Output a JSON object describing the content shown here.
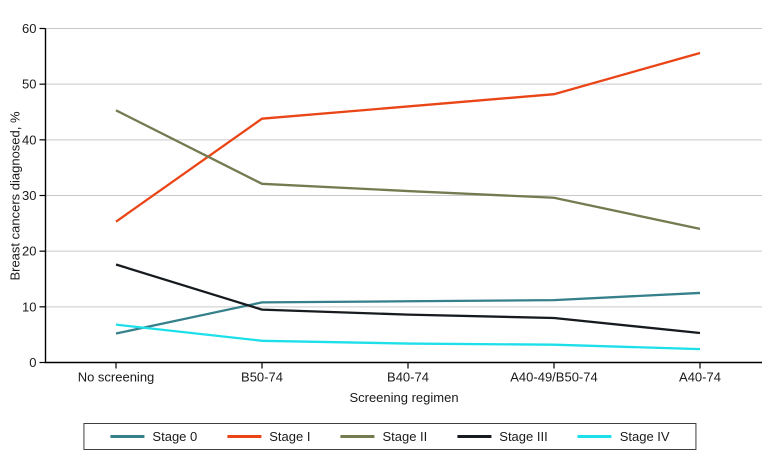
{
  "chart_data": {
    "type": "line",
    "title": "",
    "xlabel": "Screening regimen",
    "ylabel": "Breast cancers diagnosed, %",
    "categories": [
      "No screening",
      "B50-74",
      "B40-74",
      "A40-49/B50-74",
      "A40-74"
    ],
    "series": [
      {
        "name": "Stage 0",
        "color": "#35808a",
        "values": [
          5.2,
          10.8,
          11.0,
          11.2,
          12.5
        ]
      },
      {
        "name": "Stage I",
        "color": "#ea4517",
        "values": [
          25.3,
          43.8,
          46.0,
          48.2,
          55.6
        ]
      },
      {
        "name": "Stage II",
        "color": "#767a50",
        "values": [
          45.3,
          32.1,
          30.8,
          29.6,
          24.0
        ]
      },
      {
        "name": "Stage III",
        "color": "#171b1f",
        "values": [
          17.6,
          9.5,
          8.6,
          8.0,
          5.3
        ]
      },
      {
        "name": "Stage IV",
        "color": "#1ddfe9",
        "values": [
          6.8,
          3.9,
          3.4,
          3.2,
          2.4
        ]
      }
    ],
    "ylim": [
      0,
      60
    ],
    "yticks": [
      0,
      10,
      20,
      30,
      40,
      50,
      60
    ],
    "grid": true,
    "gridline_color": "#c9c9c9",
    "axis_color": "#000000",
    "legend_position": "bottom"
  }
}
